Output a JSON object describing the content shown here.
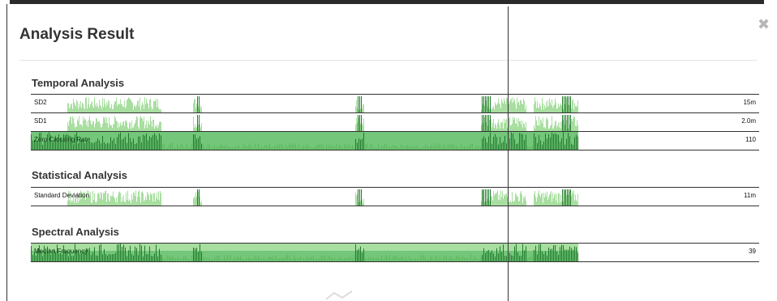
{
  "dialog": {
    "title": "Analysis Result",
    "close_icon": "close-icon"
  },
  "sections": [
    {
      "title": "Temporal Analysis",
      "tracks": [
        {
          "label": "SD2",
          "value": "15m",
          "style": "peaks"
        },
        {
          "label": "SD1",
          "value": "2.0m",
          "style": "peaks"
        },
        {
          "label": "Zero Crossing Rate",
          "value": "110",
          "style": "filled"
        }
      ]
    },
    {
      "title": "Statistical Analysis",
      "tracks": [
        {
          "label": "Standard Deviation",
          "value": "11m",
          "style": "peaks"
        }
      ]
    },
    {
      "title": "Spectral Analysis",
      "tracks": [
        {
          "label": "Median Frequency",
          "value": "39",
          "style": "filled-spectral"
        }
      ]
    }
  ],
  "colors": {
    "light_green": "#a8dea0",
    "mid_green": "#5cb85c",
    "dark_green": "#1f7a2a",
    "fill_green": "#73c67a"
  }
}
